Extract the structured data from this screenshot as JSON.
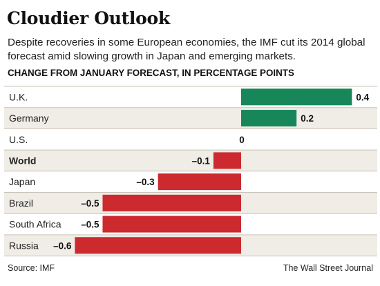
{
  "header": {
    "title": "Cloudier Outlook",
    "subtitle": "Despite recoveries in some European economies, the IMF cut its 2014 global forecast amid slowing growth in Japan and emerging markets."
  },
  "footer": {
    "source": "Source: IMF",
    "credit": "The Wall Street Journal"
  },
  "colors": {
    "positive": "#17875a",
    "negative": "#cc2a2e",
    "row_band": "#f0ece6",
    "row_separator": "#c9c3ba",
    "zero_line": "#222222"
  },
  "chart_data": {
    "type": "bar",
    "orientation": "horizontal",
    "title": "Cloudier Outlook",
    "xlabel": "CHANGE FROM JANUARY FORECAST, IN PERCENTAGE POINTS",
    "ylabel": "",
    "xlim": [
      -0.6,
      0.4
    ],
    "grid": false,
    "legend": "none",
    "categories": [
      "U.K.",
      "Germany",
      "U.S.",
      "World",
      "Japan",
      "Brazil",
      "South Africa",
      "Russia"
    ],
    "values": [
      0.4,
      0.2,
      0,
      -0.1,
      -0.3,
      -0.5,
      -0.5,
      -0.6
    ],
    "value_labels": [
      "0.4",
      "0.2",
      "0",
      "–0.1",
      "–0.3",
      "–0.5",
      "–0.5",
      "–0.6"
    ],
    "bold_categories": [
      "World"
    ]
  }
}
